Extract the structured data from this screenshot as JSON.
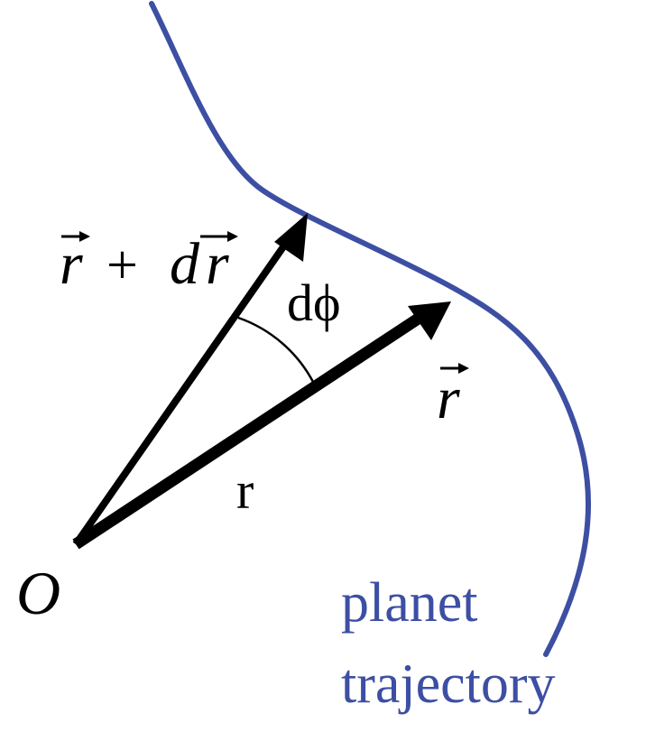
{
  "labels": {
    "vector_sum_r": "r",
    "vector_sum_plus": "+",
    "vector_sum_d": "d",
    "vector_sum_dr": "r",
    "angle": "dϕ",
    "vector_r": "r",
    "magnitude_r": "r",
    "origin": "O",
    "trajectory_line1": "planet",
    "trajectory_line2": "trajectory"
  },
  "colors": {
    "trajectory": "#3d4fa3",
    "vectors": "#000000",
    "text": "#000000"
  }
}
